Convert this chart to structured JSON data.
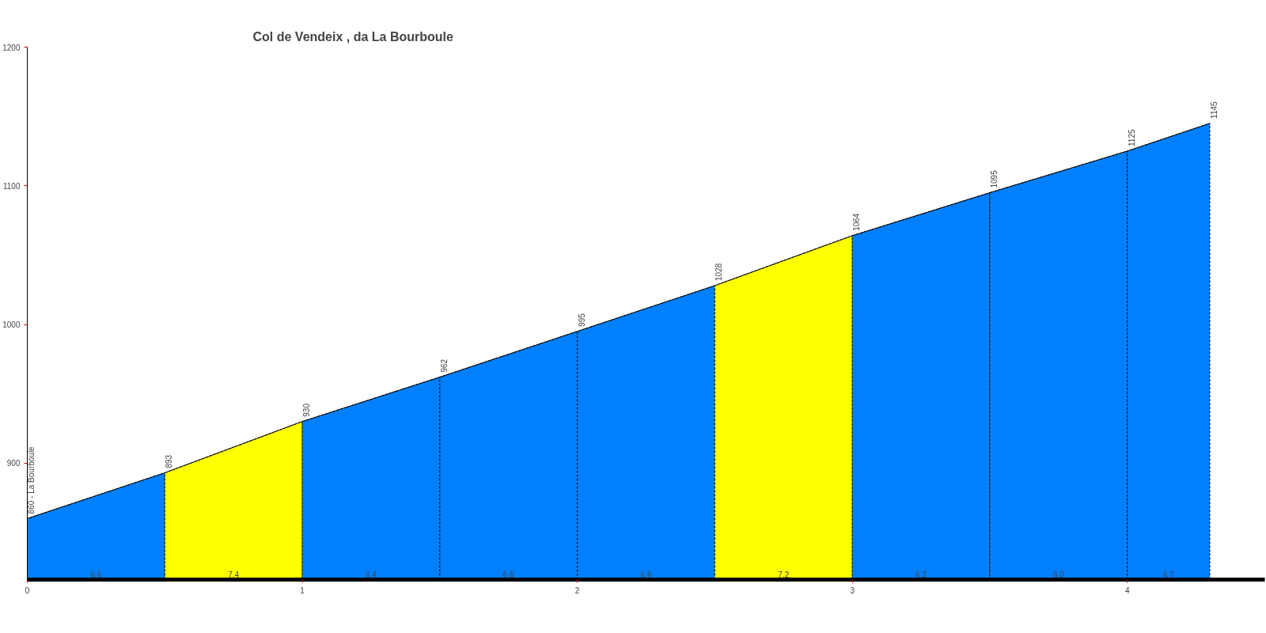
{
  "chart_data": {
    "type": "area",
    "title": "Col de Vendeix , da La Bourboule",
    "xlim": [
      0,
      4.5
    ],
    "xticks": [
      0,
      1,
      2,
      3,
      4
    ],
    "ylim": [
      816,
      1200
    ],
    "yticks": [
      900,
      1000,
      1100,
      1200
    ],
    "grid": false,
    "series": [
      {
        "color": "#0080ff",
        "x": [
          0,
          0.5
        ],
        "values": [
          860,
          893
        ],
        "value_labels": [
          "860 - La Bourboule",
          null
        ]
      },
      {
        "color": "#ffff00",
        "x": [
          0.5,
          1
        ],
        "values": [
          893,
          930
        ],
        "value_labels": [
          "893",
          null
        ]
      },
      {
        "color": "#0080ff",
        "x": [
          1,
          1.5
        ],
        "values": [
          930,
          962
        ],
        "value_labels": [
          "930",
          null
        ]
      },
      {
        "color": "#0080ff",
        "x": [
          1.5,
          2
        ],
        "values": [
          962,
          995
        ],
        "value_labels": [
          "962",
          null
        ]
      },
      {
        "color": "#0080ff",
        "x": [
          2,
          2.5
        ],
        "values": [
          995,
          1028
        ],
        "value_labels": [
          "995",
          null
        ]
      },
      {
        "color": "#ffff00",
        "x": [
          2.5,
          3
        ],
        "values": [
          1028,
          1064
        ],
        "value_labels": [
          "1028",
          null
        ]
      },
      {
        "color": "#0080ff",
        "x": [
          3,
          3.5
        ],
        "values": [
          1064,
          1095
        ],
        "value_labels": [
          "1064",
          null
        ]
      },
      {
        "color": "#0080ff",
        "x": [
          3.5,
          4
        ],
        "values": [
          1095,
          1125
        ],
        "value_labels": [
          "1095",
          null
        ]
      },
      {
        "color": "#0080ff",
        "x": [
          4,
          4.3
        ],
        "values": [
          1125,
          1145
        ],
        "value_labels": [
          "1125",
          "1145"
        ]
      }
    ],
    "annotations": [
      "6,6",
      "7,4",
      "6,4",
      "6,6",
      "6,6",
      "7,2",
      "6,2",
      "6,0",
      "6,7"
    ]
  }
}
